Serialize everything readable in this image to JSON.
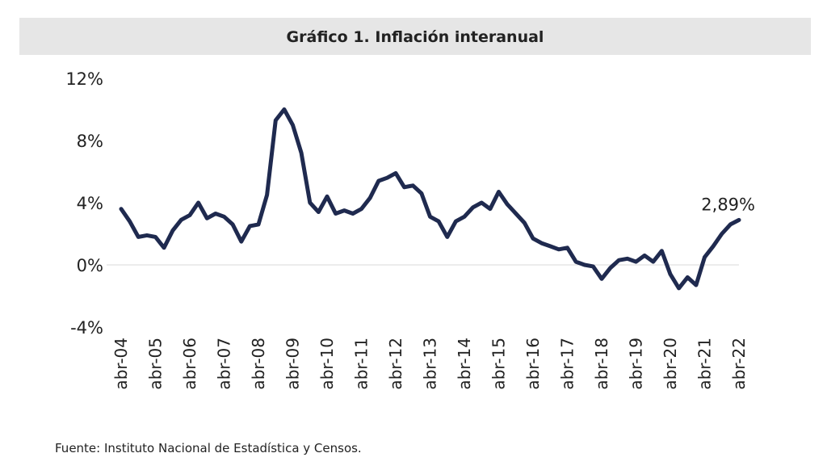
{
  "chart_data": {
    "type": "line",
    "title": "Gráfico 1. Inflación interanual",
    "source": "Fuente: Instituto Nacional de Estadística y Censos.",
    "annotation": "2,89%",
    "categories": [
      "abr-04",
      null,
      null,
      null,
      "abr-05",
      null,
      null,
      null,
      "abr-06",
      null,
      null,
      null,
      "abr-07",
      null,
      null,
      null,
      "abr-08",
      null,
      null,
      null,
      "abr-09",
      null,
      null,
      null,
      "abr-10",
      null,
      null,
      null,
      "abr-11",
      null,
      null,
      null,
      "abr-12",
      null,
      null,
      null,
      "abr-13",
      null,
      null,
      null,
      "abr-14",
      null,
      null,
      null,
      "abr-15",
      null,
      null,
      null,
      "abr-16",
      null,
      null,
      null,
      "abr-17",
      null,
      null,
      null,
      "abr-18",
      null,
      null,
      null,
      "abr-19",
      null,
      null,
      null,
      "abr-20",
      null,
      null,
      null,
      "abr-21",
      null,
      null,
      null,
      "abr-22"
    ],
    "series": [
      {
        "name": "Inflación interanual",
        "color": "#1f2a4f",
        "values": [
          3.6,
          2.8,
          1.8,
          1.9,
          1.8,
          1.1,
          2.2,
          2.9,
          3.2,
          4.0,
          3.0,
          3.3,
          3.1,
          2.6,
          1.5,
          2.5,
          2.6,
          4.5,
          9.3,
          10.0,
          9.0,
          7.2,
          4.0,
          3.4,
          4.4,
          3.3,
          3.5,
          3.3,
          3.6,
          4.3,
          5.4,
          5.6,
          5.9,
          5.0,
          5.1,
          4.6,
          3.1,
          2.8,
          1.8,
          2.8,
          3.1,
          3.7,
          4.0,
          3.6,
          4.7,
          3.9,
          3.3,
          2.7,
          1.7,
          1.4,
          1.2,
          1.0,
          1.1,
          0.2,
          0.0,
          -0.1,
          -0.9,
          -0.2,
          0.3,
          0.4,
          0.2,
          0.6,
          0.2,
          0.9,
          -0.6,
          -1.5,
          -0.8,
          -1.3,
          0.5,
          1.2,
          2.0,
          2.6,
          2.89
        ]
      }
    ],
    "ylim": [
      -4,
      12
    ],
    "yticks": [
      {
        "value": -4,
        "label": "-4%"
      },
      {
        "value": 0,
        "label": "0%"
      },
      {
        "value": 4,
        "label": "4%"
      },
      {
        "value": 8,
        "label": "8%"
      },
      {
        "value": 12,
        "label": "12%"
      }
    ],
    "zero_line": true,
    "grid": false
  }
}
